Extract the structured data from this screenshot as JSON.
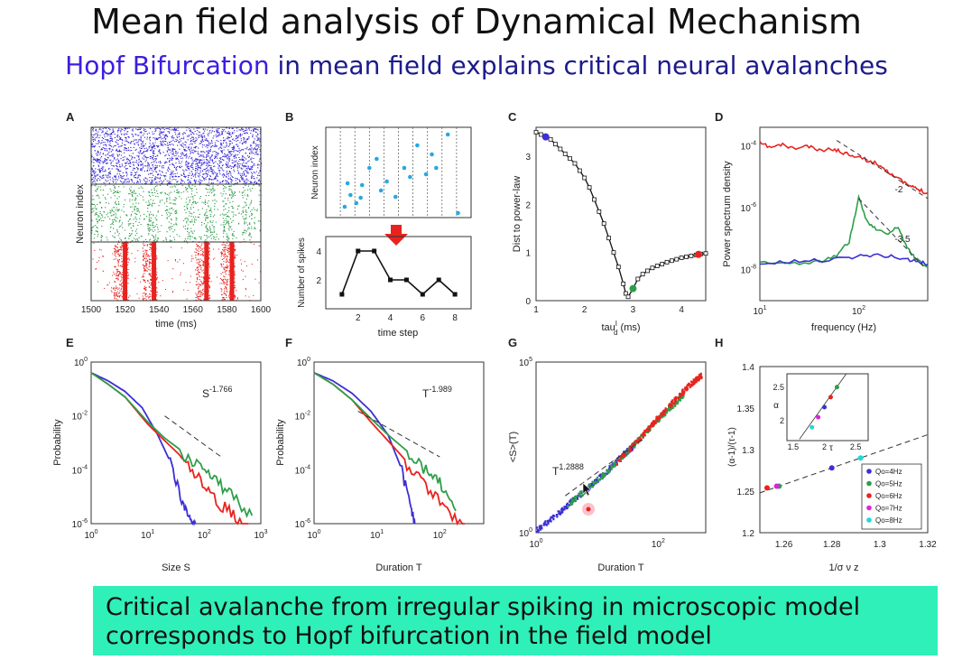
{
  "slide": {
    "title": "Mean field analysis of Dynamical Mechanism",
    "subtitle_highlight": "Hopf Bifurcation",
    "subtitle_rest": " in mean field explains critical neural  avalanches",
    "highlight_color": "#3a1ee0",
    "subtitle_color": "#1c1a8c",
    "banner_line1": "Critical avalanche from irregular spiking in microscopic model",
    "banner_line2": "corresponds to Hopf bifurcation in the field model",
    "banner_color": "#2ff0b8"
  },
  "chart_data": [
    {
      "panel": "A",
      "type": "scatter",
      "xlabel": "time (ms)",
      "ylabel": "Neuron index",
      "xlim": [
        1500,
        1600
      ],
      "xticks": [
        "1500",
        "1520",
        "1540",
        "1560",
        "1580",
        "1600"
      ],
      "bands": [
        {
          "color": "#3b2fd6",
          "pattern": "dense"
        },
        {
          "color": "#2e9e4a",
          "pattern": "oscillatory"
        },
        {
          "color": "#e8231f",
          "pattern": "bursts",
          "bursts_at": [
            1520,
            1537,
            1568,
            1583
          ]
        }
      ]
    },
    {
      "panel": "B",
      "type": "scatter+line",
      "top_ylabel": "Neuron index",
      "spike_points": [
        [
          1.3,
          0.12
        ],
        [
          1.7,
          0.25
        ],
        [
          1.5,
          0.38
        ],
        [
          2.1,
          0.16
        ],
        [
          2.4,
          0.22
        ],
        [
          2.5,
          0.36
        ],
        [
          3.0,
          0.55
        ],
        [
          3.5,
          0.65
        ],
        [
          3.8,
          0.3
        ],
        [
          4.2,
          0.4
        ],
        [
          4.8,
          0.23
        ],
        [
          5.4,
          0.55
        ],
        [
          5.8,
          0.45
        ],
        [
          6.3,
          0.8
        ],
        [
          6.9,
          0.48
        ],
        [
          7.3,
          0.7
        ],
        [
          7.6,
          0.55
        ],
        [
          8.4,
          0.92
        ],
        [
          9.1,
          0.05
        ]
      ],
      "bottom_ylabel": "Number of spikes",
      "xlabel": "time step",
      "x": [
        1,
        2,
        3,
        4,
        5,
        6,
        7,
        8
      ],
      "y": [
        1,
        4,
        4,
        2,
        2,
        1,
        2,
        1
      ],
      "xticks": [
        "2",
        "4",
        "6",
        "8"
      ],
      "yticks": [
        "2",
        "4"
      ],
      "arrow_color": "#e8231f"
    },
    {
      "panel": "C",
      "type": "line",
      "xlabel": "tau",
      "xlabel_sup": "I",
      "xlabel_sub": "d",
      "xlabel_unit": " (ms)",
      "ylabel": "Dist to power-law",
      "xlim": [
        1,
        4.5
      ],
      "ylim": [
        0,
        3.6
      ],
      "xticks": [
        "1",
        "2",
        "3",
        "4"
      ],
      "yticks": [
        "0",
        "1",
        "2",
        "3"
      ],
      "x": [
        1.0,
        1.1,
        1.2,
        1.3,
        1.4,
        1.5,
        1.6,
        1.7,
        1.8,
        1.9,
        2.0,
        2.1,
        2.2,
        2.3,
        2.4,
        2.5,
        2.6,
        2.7,
        2.8,
        2.85,
        2.9,
        3.0,
        3.1,
        3.2,
        3.3,
        3.4,
        3.5,
        3.6,
        3.7,
        3.8,
        3.9,
        4.0,
        4.1,
        4.2,
        4.3,
        4.4,
        4.5
      ],
      "y": [
        3.5,
        3.45,
        3.4,
        3.35,
        3.25,
        3.15,
        3.05,
        2.95,
        2.85,
        2.7,
        2.55,
        2.35,
        2.1,
        1.85,
        1.6,
        1.3,
        1.0,
        0.7,
        0.35,
        0.15,
        0.08,
        0.25,
        0.45,
        0.55,
        0.62,
        0.68,
        0.72,
        0.76,
        0.8,
        0.83,
        0.86,
        0.89,
        0.91,
        0.93,
        0.95,
        0.97,
        0.98
      ],
      "highlights": [
        {
          "x": 1.2,
          "y": 3.4,
          "color": "#3b2fd6"
        },
        {
          "x": 3.0,
          "y": 0.25,
          "color": "#2e9e4a"
        },
        {
          "x": 4.35,
          "y": 0.96,
          "color": "#e8231f"
        }
      ]
    },
    {
      "panel": "D",
      "type": "line",
      "xscale": "log",
      "yscale": "log",
      "xlabel": "frequency (Hz)",
      "ylabel": "Power spectrum density",
      "xtick_base": "10",
      "xtick_exps": [
        "1",
        "2"
      ],
      "ytick_base": "10",
      "ytick_exps": [
        "-4",
        "-6",
        "-8"
      ],
      "slope_labels": [
        "-2",
        "-3.5"
      ],
      "series": [
        {
          "color": "#e8231f",
          "x": [
            10,
            13,
            17,
            22,
            30,
            40,
            55,
            70,
            90,
            120,
            160,
            200,
            260,
            330,
            400,
            500
          ],
          "y": [
            0.00012,
            9e-05,
            0.00011,
            8e-05,
            0.0001,
            7e-05,
            8e-05,
            6e-05,
            5e-05,
            3.5e-05,
            2.5e-05,
            1.5e-05,
            8e-06,
            5e-06,
            4e-06,
            3e-06
          ]
        },
        {
          "color": "#2e9e4a",
          "x": [
            10,
            20,
            40,
            60,
            80,
            100,
            120,
            150,
            200,
            250,
            300,
            350,
            400,
            500
          ],
          "y": [
            1.8e-08,
            1.6e-08,
            1.8e-08,
            3e-08,
            8e-08,
            2e-06,
            4e-07,
            2e-07,
            1.4e-07,
            2.5e-07,
            6e-08,
            3e-08,
            2e-08,
            1.2e-08
          ]
        },
        {
          "color": "#3b2fd6",
          "x": [
            10,
            20,
            40,
            80,
            120,
            200,
            300,
            400,
            500
          ],
          "y": [
            1.5e-08,
            1.8e-08,
            2e-08,
            2.5e-08,
            3e-08,
            2.8e-08,
            2.2e-08,
            1.8e-08,
            1.5e-08
          ]
        }
      ]
    },
    {
      "panel": "E",
      "type": "line",
      "xscale": "log",
      "yscale": "log",
      "xlabel": "Size S",
      "ylabel": "Probability",
      "annotation_base": "S",
      "annotation_exp": "-1.766",
      "xtick_base": "10",
      "xtick_exps": [
        "0",
        "1",
        "2",
        "3"
      ],
      "ytick_base": "10",
      "ytick_exps": [
        "0",
        "-2",
        "-4",
        "-6"
      ],
      "series": [
        {
          "color": "#3b2fd6",
          "x": [
            1,
            2,
            4,
            8,
            15,
            25,
            40,
            55,
            70
          ],
          "y": [
            0.4,
            0.2,
            0.08,
            0.02,
            0.002,
            0.0002,
            1e-05,
            2e-06,
            1e-06
          ]
        },
        {
          "color": "#e8231f",
          "x": [
            1,
            2,
            4,
            10,
            20,
            40,
            80,
            150,
            300,
            600
          ],
          "y": [
            0.4,
            0.15,
            0.05,
            0.005,
            0.0012,
            0.0003,
            6e-05,
            1e-05,
            3e-06,
            1e-06
          ]
        },
        {
          "color": "#2e9e4a",
          "x": [
            1,
            2,
            4,
            10,
            20,
            40,
            80,
            150,
            300,
            700
          ],
          "y": [
            0.4,
            0.15,
            0.05,
            0.006,
            0.0015,
            0.0005,
            0.00015,
            5e-05,
            1.5e-05,
            2e-06
          ]
        }
      ]
    },
    {
      "panel": "F",
      "type": "line",
      "xscale": "log",
      "yscale": "log",
      "xlabel": "Duration T",
      "ylabel": "Probability",
      "annotation_base": "T",
      "annotation_exp": "-1.989",
      "xtick_base": "10",
      "xtick_exps": [
        "0",
        "1",
        "2"
      ],
      "ytick_base": "10",
      "ytick_exps": [
        "0",
        "-2",
        "-4",
        "-6"
      ],
      "series": [
        {
          "color": "#3b2fd6",
          "x": [
            1,
            2,
            4,
            8,
            15,
            25,
            35,
            40
          ],
          "y": [
            0.4,
            0.2,
            0.07,
            0.015,
            0.002,
            0.0001,
            5e-06,
            1e-06
          ]
        },
        {
          "color": "#e8231f",
          "x": [
            1,
            2,
            4,
            8,
            15,
            30,
            60,
            120,
            250
          ],
          "y": [
            0.4,
            0.15,
            0.04,
            0.006,
            0.0012,
            0.0002,
            3e-05,
            5e-06,
            1e-06
          ]
        },
        {
          "color": "#2e9e4a",
          "x": [
            1,
            2,
            4,
            8,
            15,
            30,
            60,
            100,
            180
          ],
          "y": [
            0.4,
            0.15,
            0.04,
            0.008,
            0.002,
            0.0005,
            0.00012,
            4e-05,
            3e-06
          ]
        }
      ]
    },
    {
      "panel": "G",
      "type": "scatter",
      "xscale": "log",
      "yscale": "log",
      "xlabel": "Duration T",
      "ylabel": "<S>(T)",
      "annotation_base": "T",
      "annotation_exp": "1.2888",
      "xtick_base": "10",
      "xtick_exps": [
        "0",
        "2"
      ],
      "ytick_base": "10",
      "ytick_exps": [
        "0",
        "5"
      ],
      "series": [
        {
          "color": "#3b2fd6",
          "x": [
            1,
            2,
            4,
            8,
            15,
            25,
            35,
            40
          ],
          "y": [
            1.2,
            3,
            9,
            25,
            70,
            180,
            300,
            380
          ]
        },
        {
          "color": "#2e9e4a",
          "x": [
            3,
            8,
            20,
            50,
            100,
            180,
            250
          ],
          "y": [
            6,
            25,
            110,
            600,
            2200,
            6000,
            11000
          ]
        },
        {
          "color": "#e8231f",
          "x": [
            20,
            50,
            100,
            200,
            350,
            500
          ],
          "y": [
            110,
            600,
            2500,
            9000,
            25000,
            40000
          ]
        }
      ]
    },
    {
      "panel": "H",
      "type": "scatter",
      "xlabel": "1/σ ν z",
      "ylabel": "(α-1)/(τ-1)",
      "xlim": [
        1.25,
        1.32
      ],
      "ylim": [
        1.2,
        1.4
      ],
      "xticks": [
        "1.26",
        "1.28",
        "1.3",
        "1.32"
      ],
      "yticks": [
        "1.2",
        "1.25",
        "1.3",
        "1.35",
        "1.4"
      ],
      "points": [
        {
          "x": 1.28,
          "y": 1.278,
          "color": "#3b2fd6"
        },
        {
          "x": 1.258,
          "y": 1.256,
          "color": "#2e9e4a"
        },
        {
          "x": 1.253,
          "y": 1.254,
          "color": "#e8231f"
        },
        {
          "x": 1.257,
          "y": 1.256,
          "color": "#e020e0"
        },
        {
          "x": 1.292,
          "y": 1.29,
          "color": "#20d8d8"
        }
      ],
      "legend": [
        {
          "label": "Qo=4Hz",
          "color": "#3b2fd6"
        },
        {
          "label": "Qo=5Hz",
          "color": "#2e9e4a"
        },
        {
          "label": "Qo=6Hz",
          "color": "#e8231f"
        },
        {
          "label": "Qo=7Hz",
          "color": "#e020e0"
        },
        {
          "label": "Qo=8Hz",
          "color": "#20d8d8"
        }
      ],
      "legend_position": "bottom-right",
      "inset": {
        "xlabel": "τ",
        "ylabel": "α",
        "xticks": [
          "1.5",
          "2",
          "2.5"
        ],
        "yticks": [
          "2",
          "2.5"
        ],
        "points": [
          {
            "x": 2.0,
            "y": 2.2,
            "color": "#3b2fd6"
          },
          {
            "x": 2.2,
            "y": 2.5,
            "color": "#2e9e4a"
          },
          {
            "x": 2.1,
            "y": 2.35,
            "color": "#e8231f"
          },
          {
            "x": 1.9,
            "y": 2.05,
            "color": "#e020e0"
          },
          {
            "x": 1.8,
            "y": 1.9,
            "color": "#20d8d8"
          }
        ]
      }
    }
  ]
}
